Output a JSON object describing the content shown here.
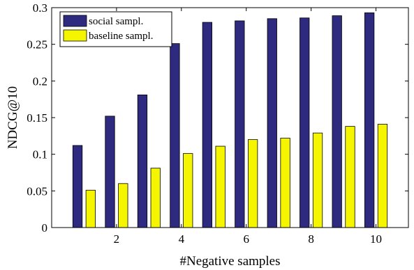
{
  "chart_data": {
    "type": "bar",
    "xlabel": "#Negative samples",
    "ylabel": "NDCG@10",
    "ylim": [
      0,
      0.3
    ],
    "xlim": [
      0,
      11
    ],
    "x": [
      1,
      2,
      3,
      4,
      5,
      6,
      7,
      8,
      9,
      10
    ],
    "xticks": [
      2,
      4,
      6,
      8,
      10
    ],
    "xtick_labels": [
      "2",
      "4",
      "6",
      "8",
      "10"
    ],
    "yticks": [
      0,
      0.05,
      0.1,
      0.15,
      0.2,
      0.25,
      0.3
    ],
    "ytick_labels": [
      "0",
      "0.05",
      "0.1",
      "0.15",
      "0.2",
      "0.25",
      "0.3"
    ],
    "grid": false,
    "legend_position": "top-left",
    "series": [
      {
        "name": "social sampl.",
        "color": "#2e2a80",
        "values": [
          0.112,
          0.152,
          0.181,
          0.251,
          0.28,
          0.282,
          0.285,
          0.286,
          0.289,
          0.293
        ]
      },
      {
        "name": "baseline sampl.",
        "color": "#f5f500",
        "values": [
          0.051,
          0.06,
          0.081,
          0.101,
          0.111,
          0.12,
          0.122,
          0.129,
          0.138,
          0.141
        ]
      }
    ]
  }
}
